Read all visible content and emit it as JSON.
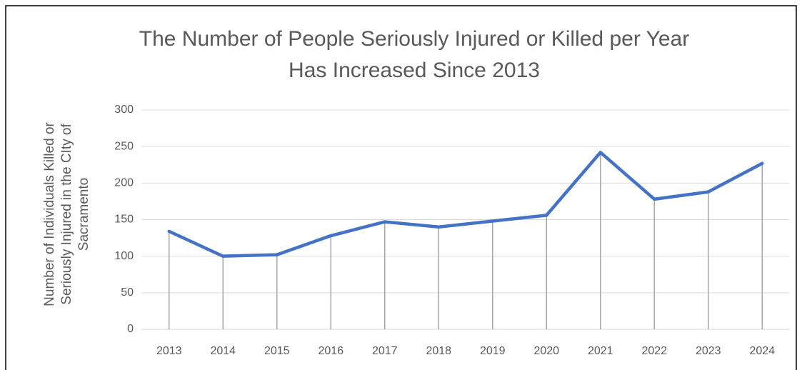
{
  "chart_data": {
    "type": "line",
    "title": [
      "The Number of People Seriously Injured or Killed per Year",
      "Has Increased Since 2013"
    ],
    "ylabel": [
      "Number of Individuals Killed or",
      "Seriously Injured in the CIty of",
      "Sacramento"
    ],
    "categories": [
      "2013",
      "2014",
      "2015",
      "2016",
      "2017",
      "2018",
      "2019",
      "2020",
      "2021",
      "2022",
      "2023",
      "2024"
    ],
    "values": [
      134,
      100,
      102,
      128,
      147,
      140,
      148,
      156,
      242,
      178,
      188,
      227
    ],
    "color": "#4472c4",
    "ylim": [
      0,
      300
    ],
    "yticks": [
      0,
      50,
      100,
      150,
      200,
      250,
      300
    ],
    "grid": true,
    "drop_lines": true
  }
}
